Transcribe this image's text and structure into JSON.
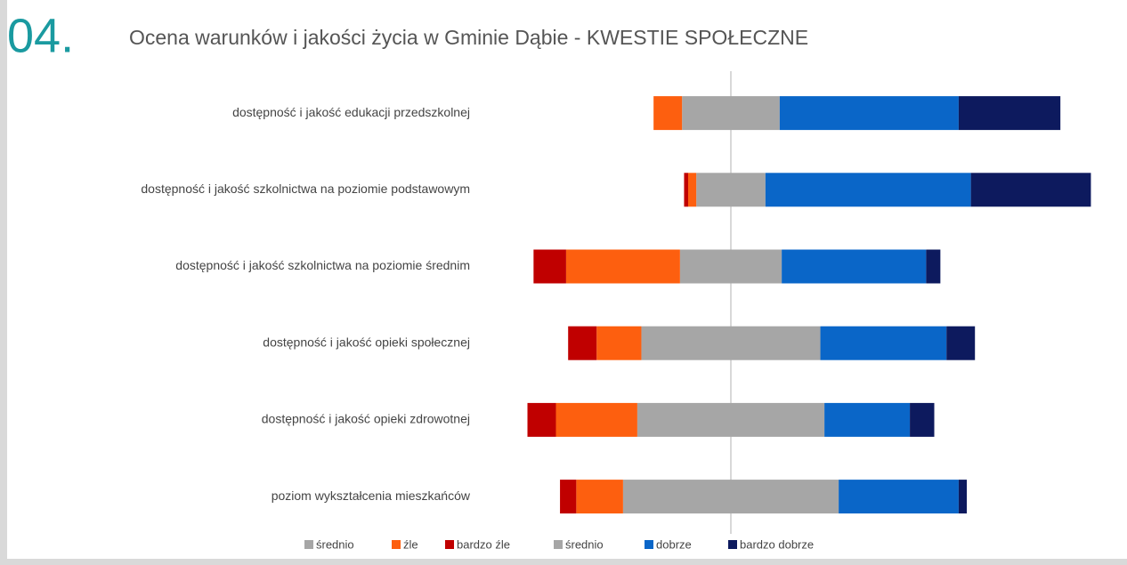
{
  "section_number": "04.",
  "chart_data": {
    "type": "diverging_bar",
    "title": "Ocena warunków i jakości życia w Gminie Dąbie - KWESTIE SPOŁECZNE",
    "categories": [
      "dostępność i jakość edukacji przedszkolnej",
      "dostępność i jakość szkolnictwa na poziomie podstawowym",
      "dostępność i jakość szkolnictwa na poziomie średnim",
      "dostępność i jakość opieki społecznej",
      "dostępność i jakość opieki zdrowotnej",
      "poziom wykształcenia mieszkańców"
    ],
    "series": [
      {
        "name": "średnio",
        "color": "#a6a6a6",
        "values": [
          12,
          8.5,
          12.5,
          22,
          23,
          26.5
        ]
      },
      {
        "name": "źle",
        "color": "#fd5f0f",
        "values": [
          7,
          2,
          28,
          11,
          20,
          11.5
        ]
      },
      {
        "name": "bardzo źle",
        "color": "#c00000",
        "values": [
          0,
          1,
          8,
          7,
          7,
          4
        ]
      },
      {
        "name": "średnio",
        "color": "#a6a6a6",
        "values": [
          12,
          8.5,
          12.5,
          22,
          23,
          26.5
        ]
      },
      {
        "name": "dobrze",
        "color": "#0a66c8",
        "values": [
          44,
          50.5,
          35.5,
          31,
          21,
          29.5
        ]
      },
      {
        "name": "bardzo dobrze",
        "color": "#0d1a5e",
        "values": [
          25,
          29.5,
          3.5,
          7,
          6,
          2
        ]
      }
    ]
  }
}
